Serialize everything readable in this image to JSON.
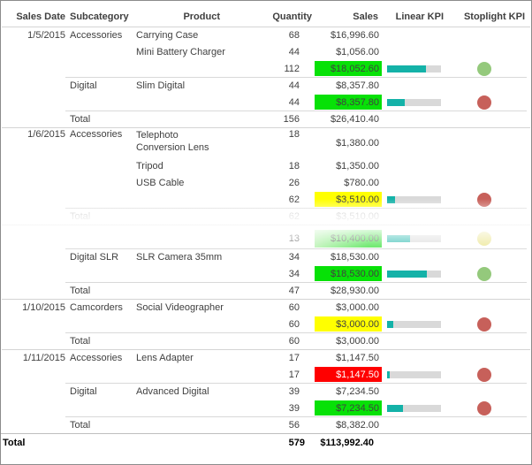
{
  "colors": {
    "sales_green": "#07e107",
    "sales_yellow": "#ffff00",
    "sales_red": "#ff0000",
    "bar_fill": "#14b2a8",
    "bar_track": "#d9d9d9",
    "stoplight_green": "#94c97c",
    "stoplight_red": "#c7605a",
    "stoplight_yellow": "#e8e07d",
    "text": "#404040",
    "faded_text": "#b8b8b8"
  },
  "table": {
    "columns": [
      "Sales Date",
      "Subcategory",
      "Product",
      "Quantity",
      "Sales",
      "Linear KPI",
      "Stoplight KPI"
    ],
    "rows": [
      {
        "date": "1/5/2015",
        "subcategory": "Accessories",
        "product": "Carrying Case",
        "quantity": "68",
        "sales": "$16,996.60",
        "rule": "full"
      },
      {
        "product": "Mini Battery Charger",
        "quantity": "44",
        "sales": "$1,056.00"
      },
      {
        "quantity": "112",
        "sales": "$18,052.60",
        "sales_bg": "green",
        "bar_pct": 72,
        "stoplight": "green"
      },
      {
        "subcategory": "Digital",
        "product": "Slim Digital",
        "quantity": "44",
        "sales": "$8,357.80",
        "rule": "sub"
      },
      {
        "quantity": "44",
        "sales": "$8,357.80",
        "sales_bg": "green",
        "bar_pct": 33,
        "stoplight": "red"
      },
      {
        "subcategory": "Total",
        "quantity": "156",
        "sales": "$26,410.40",
        "rule": "sub"
      },
      {
        "date": "1/6/2015",
        "subcategory": "Accessories",
        "product": "Telephoto Conversion Lens",
        "quantity": "18",
        "sales": "$1,380.00",
        "rule": "full",
        "v": "tall"
      },
      {
        "product": "Tripod",
        "quantity": "18",
        "sales": "$1,350.00"
      },
      {
        "product": "USB Cable",
        "quantity": "26",
        "sales": "$780.00"
      },
      {
        "quantity": "62",
        "sales": "$3,510.00",
        "sales_bg": "yellow",
        "bar_pct": 14,
        "stoplight": "red"
      },
      {
        "subcategory": "Total",
        "quantity": "62",
        "sales": "$3,510.00",
        "rule": "sub",
        "dim": true
      },
      {
        "v": "spacer",
        "rule": "full"
      },
      {
        "quantity": "13",
        "sales": "$10,400.00",
        "sales_bg": "grad",
        "bar_pct": 42,
        "stoplight": "yellow",
        "v": "fsub",
        "ghost": true
      },
      {
        "subcategory": "Digital SLR",
        "product": "SLR Camera 35mm",
        "quantity": "34",
        "sales": "$18,530.00",
        "rule": "sub"
      },
      {
        "quantity": "34",
        "sales": "$18,530.00",
        "sales_bg": "green",
        "bar_pct": 74,
        "stoplight": "green"
      },
      {
        "subcategory": "Total",
        "quantity": "47",
        "sales": "$28,930.00",
        "rule": "sub"
      },
      {
        "date": "1/10/2015",
        "subcategory": "Camcorders",
        "product": "Social Videographer",
        "quantity": "60",
        "sales": "$3,000.00",
        "rule": "full"
      },
      {
        "quantity": "60",
        "sales": "$3,000.00",
        "sales_bg": "yellow",
        "bar_pct": 12,
        "stoplight": "red"
      },
      {
        "subcategory": "Total",
        "quantity": "60",
        "sales": "$3,000.00",
        "rule": "sub"
      },
      {
        "date": "1/11/2015",
        "subcategory": "Accessories",
        "product": "Lens Adapter",
        "quantity": "17",
        "sales": "$1,147.50",
        "rule": "full"
      },
      {
        "quantity": "17",
        "sales": "$1,147.50",
        "sales_bg": "red",
        "bar_pct": 5,
        "stoplight": "red"
      },
      {
        "subcategory": "Digital",
        "product": "Advanced Digital",
        "quantity": "39",
        "sales": "$7,234.50",
        "rule": "sub"
      },
      {
        "quantity": "39",
        "sales": "$7,234.50",
        "sales_bg": "green",
        "bar_pct": 29,
        "stoplight": "red"
      },
      {
        "subcategory": "Total",
        "quantity": "56",
        "sales": "$8,382.00",
        "rule": "sub"
      },
      {
        "date": "Total",
        "quantity": "579",
        "sales": "$113,992.40",
        "rule": "grandline",
        "v": "grand"
      }
    ]
  }
}
